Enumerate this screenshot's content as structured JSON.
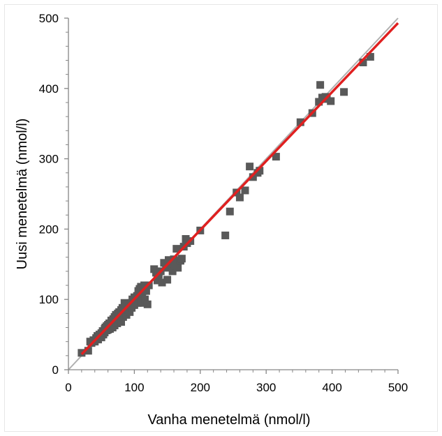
{
  "chart_data": {
    "type": "scatter",
    "title": "",
    "xlabel": "Vanha menetelmä (nmol/l)",
    "ylabel": "Uusi menetelmä (nmol/l)",
    "xlim": [
      0,
      500
    ],
    "ylim": [
      0,
      500
    ],
    "x_ticks": [
      "0",
      "100",
      "200",
      "300",
      "400",
      "500"
    ],
    "y_ticks": [
      "0",
      "100",
      "200",
      "300",
      "400",
      "500"
    ],
    "grid": false,
    "legend": "none",
    "marker": "square",
    "marker_color": "#595959",
    "identity_line": {
      "from": [
        0,
        0
      ],
      "to": [
        500,
        500
      ],
      "color": "#b0b0b0"
    },
    "regression_line": {
      "from": [
        20,
        22
      ],
      "to": [
        500,
        493
      ],
      "color": "#e02020"
    },
    "points": [
      [
        20,
        24
      ],
      [
        30,
        27
      ],
      [
        33,
        40
      ],
      [
        35,
        38
      ],
      [
        38,
        42
      ],
      [
        40,
        40
      ],
      [
        42,
        45
      ],
      [
        44,
        48
      ],
      [
        45,
        43
      ],
      [
        47,
        50
      ],
      [
        48,
        47
      ],
      [
        50,
        52
      ],
      [
        50,
        46
      ],
      [
        52,
        55
      ],
      [
        53,
        50
      ],
      [
        55,
        58
      ],
      [
        55,
        53
      ],
      [
        56,
        60
      ],
      [
        58,
        56
      ],
      [
        58,
        62
      ],
      [
        60,
        57
      ],
      [
        60,
        64
      ],
      [
        61,
        60
      ],
      [
        62,
        66
      ],
      [
        63,
        58
      ],
      [
        64,
        62
      ],
      [
        65,
        70
      ],
      [
        66,
        64
      ],
      [
        67,
        60
      ],
      [
        68,
        72
      ],
      [
        69,
        66
      ],
      [
        70,
        75
      ],
      [
        70,
        63
      ],
      [
        71,
        68
      ],
      [
        72,
        78
      ],
      [
        73,
        70
      ],
      [
        74,
        66
      ],
      [
        75,
        80
      ],
      [
        76,
        73
      ],
      [
        77,
        82
      ],
      [
        78,
        71
      ],
      [
        79,
        76
      ],
      [
        80,
        85
      ],
      [
        80,
        68
      ],
      [
        81,
        79
      ],
      [
        82,
        88
      ],
      [
        83,
        75
      ],
      [
        84,
        83
      ],
      [
        85,
        95
      ],
      [
        86,
        80
      ],
      [
        87,
        90
      ],
      [
        88,
        78
      ],
      [
        89,
        86
      ],
      [
        90,
        93
      ],
      [
        91,
        85
      ],
      [
        92,
        90
      ],
      [
        93,
        82
      ],
      [
        95,
        95
      ],
      [
        96,
        88
      ],
      [
        97,
        100
      ],
      [
        98,
        92
      ],
      [
        100,
        103
      ],
      [
        100,
        92
      ],
      [
        102,
        96
      ],
      [
        104,
        105
      ],
      [
        105,
        95
      ],
      [
        106,
        112
      ],
      [
        107,
        100
      ],
      [
        108,
        115
      ],
      [
        109,
        105
      ],
      [
        110,
        118
      ],
      [
        110,
        95
      ],
      [
        111,
        110
      ],
      [
        112,
        108
      ],
      [
        113,
        115
      ],
      [
        114,
        112
      ],
      [
        115,
        120
      ],
      [
        116,
        100
      ],
      [
        117,
        116
      ],
      [
        118,
        112
      ],
      [
        120,
        93
      ],
      [
        122,
        120
      ],
      [
        130,
        143
      ],
      [
        133,
        138
      ],
      [
        135,
        127
      ],
      [
        137,
        135
      ],
      [
        140,
        140
      ],
      [
        142,
        124
      ],
      [
        145,
        152
      ],
      [
        148,
        145
      ],
      [
        150,
        128
      ],
      [
        152,
        156
      ],
      [
        155,
        150
      ],
      [
        158,
        140
      ],
      [
        160,
        157
      ],
      [
        162,
        148
      ],
      [
        164,
        172
      ],
      [
        166,
        145
      ],
      [
        170,
        155
      ],
      [
        172,
        158
      ],
      [
        175,
        175
      ],
      [
        178,
        186
      ],
      [
        180,
        180
      ],
      [
        185,
        183
      ],
      [
        200,
        198
      ],
      [
        238,
        191
      ],
      [
        245,
        225
      ],
      [
        255,
        252
      ],
      [
        260,
        245
      ],
      [
        268,
        255
      ],
      [
        275,
        289
      ],
      [
        280,
        274
      ],
      [
        287,
        280
      ],
      [
        290,
        283
      ],
      [
        315,
        303
      ],
      [
        352,
        352
      ],
      [
        370,
        365
      ],
      [
        380,
        381
      ],
      [
        382,
        405
      ],
      [
        385,
        387
      ],
      [
        390,
        388
      ],
      [
        392,
        385
      ],
      [
        398,
        382
      ],
      [
        418,
        395
      ],
      [
        447,
        437
      ],
      [
        458,
        445
      ]
    ]
  }
}
